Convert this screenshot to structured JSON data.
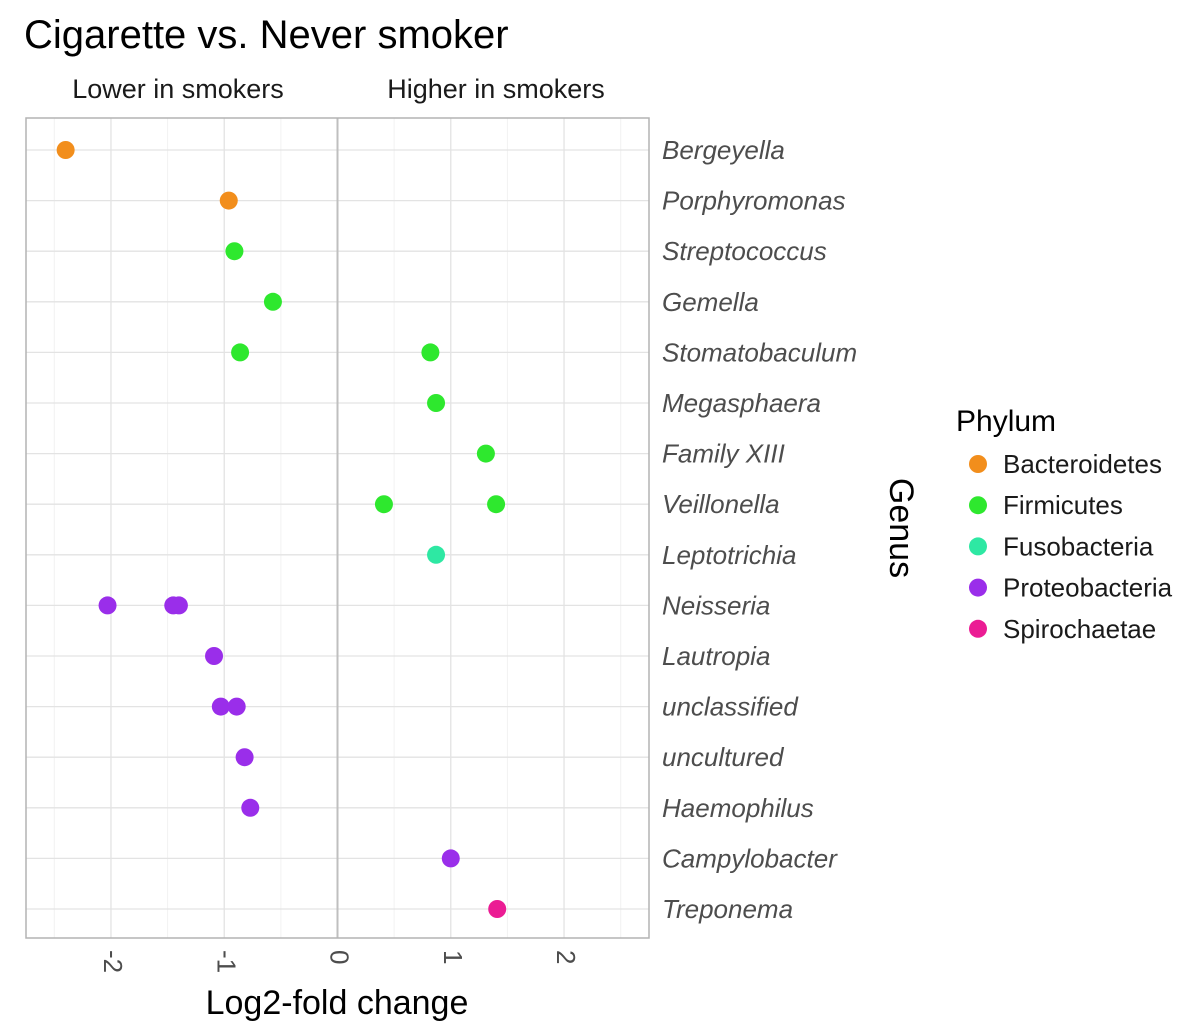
{
  "chart_data": {
    "type": "scatter",
    "title": "Cigarette vs. Never smoker",
    "facet_labels": [
      "Lower in smokers",
      "Higher in smokers"
    ],
    "xlabel": "Log2-fold change",
    "ylabel": "Genus",
    "xlim": [
      -2.75,
      2.75
    ],
    "x_ticks": [
      -2,
      -1,
      0,
      1,
      2
    ],
    "x_tick_labels": [
      "-2",
      "-1",
      "0",
      "1",
      "2"
    ],
    "zero_line": true,
    "grid": true,
    "legend_position": "right",
    "genera": [
      "Bergeyella",
      "Porphyromonas",
      "Streptococcus",
      "Gemella",
      "Stomatobaculum",
      "Megasphaera",
      "Family XIII",
      "Veillonella",
      "Leptotrichia",
      "Neisseria",
      "Lautropia",
      "unclassified",
      "uncultured",
      "Haemophilus",
      "Campylobacter",
      "Treponema"
    ],
    "legend": {
      "title": "Phylum",
      "entries": [
        {
          "name": "Bacteroidetes",
          "color": "#F28E1C"
        },
        {
          "name": "Firmicutes",
          "color": "#2EE82E"
        },
        {
          "name": "Fusobacteria",
          "color": "#2EE8A3"
        },
        {
          "name": "Proteobacteria",
          "color": "#9A2EEA"
        },
        {
          "name": "Spirochaetae",
          "color": "#EB1C94"
        }
      ]
    },
    "points": [
      {
        "genus": "Bergeyella",
        "x": -2.4,
        "phylum": "Bacteroidetes"
      },
      {
        "genus": "Porphyromonas",
        "x": -0.96,
        "phylum": "Bacteroidetes"
      },
      {
        "genus": "Streptococcus",
        "x": -0.91,
        "phylum": "Firmicutes"
      },
      {
        "genus": "Gemella",
        "x": -0.57,
        "phylum": "Firmicutes"
      },
      {
        "genus": "Stomatobaculum",
        "x": -0.86,
        "phylum": "Firmicutes"
      },
      {
        "genus": "Stomatobaculum",
        "x": 0.82,
        "phylum": "Firmicutes"
      },
      {
        "genus": "Megasphaera",
        "x": 0.87,
        "phylum": "Firmicutes"
      },
      {
        "genus": "Family XIII",
        "x": 1.31,
        "phylum": "Firmicutes"
      },
      {
        "genus": "Veillonella",
        "x": 0.41,
        "phylum": "Firmicutes"
      },
      {
        "genus": "Veillonella",
        "x": 1.4,
        "phylum": "Firmicutes"
      },
      {
        "genus": "Leptotrichia",
        "x": 0.87,
        "phylum": "Fusobacteria"
      },
      {
        "genus": "Neisseria",
        "x": -2.03,
        "phylum": "Proteobacteria"
      },
      {
        "genus": "Neisseria",
        "x": -1.45,
        "phylum": "Proteobacteria"
      },
      {
        "genus": "Neisseria",
        "x": -1.4,
        "phylum": "Proteobacteria"
      },
      {
        "genus": "Lautropia",
        "x": -1.09,
        "phylum": "Proteobacteria"
      },
      {
        "genus": "unclassified",
        "x": -1.03,
        "phylum": "Proteobacteria"
      },
      {
        "genus": "unclassified",
        "x": -0.89,
        "phylum": "Proteobacteria"
      },
      {
        "genus": "uncultured",
        "x": -0.82,
        "phylum": "Proteobacteria"
      },
      {
        "genus": "Haemophilus",
        "x": -0.77,
        "phylum": "Proteobacteria"
      },
      {
        "genus": "Campylobacter",
        "x": 1.0,
        "phylum": "Proteobacteria"
      },
      {
        "genus": "Treponema",
        "x": 1.41,
        "phylum": "Spirochaetae"
      }
    ]
  }
}
